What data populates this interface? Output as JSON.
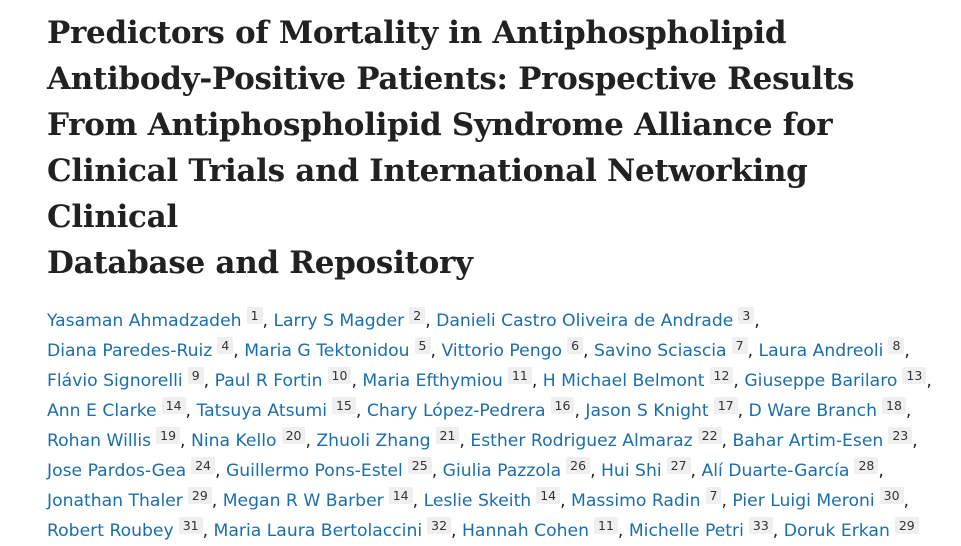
{
  "article": {
    "title": "Predictors of Mortality in Antiphospholipid Antibody-Positive Patients: Prospective Results From Antiphospholipid Syndrome Alliance for Clinical Trials and International Networking Clinical Database and Repository",
    "title_lines": [
      "Predictors of Mortality in Antiphospholipid",
      "Antibody‑Positive Patients: Prospective Results",
      "From Antiphospholipid Syndrome Alliance for",
      "Clinical Trials and International Networking Clinical",
      "Database and Repository"
    ],
    "colors": {
      "title": "#212121",
      "author_link": "#1a6eab",
      "affiliation_bg": "#efefef"
    },
    "authors": [
      {
        "name": "Yasaman Ahmadzadeh",
        "aff": "1"
      },
      {
        "name": "Larry S Magder",
        "aff": "2"
      },
      {
        "name": "Danieli Castro Oliveira de Andrade",
        "aff": "3"
      },
      {
        "name": "Diana Paredes-Ruiz",
        "aff": "4"
      },
      {
        "name": "Maria G Tektonidou",
        "aff": "5"
      },
      {
        "name": "Vittorio Pengo",
        "aff": "6"
      },
      {
        "name": "Savino Sciascia",
        "aff": "7"
      },
      {
        "name": "Laura Andreoli",
        "aff": "8"
      },
      {
        "name": "Flávio Signorelli",
        "aff": "9"
      },
      {
        "name": "Paul R Fortin",
        "aff": "10"
      },
      {
        "name": "Maria Efthymiou",
        "aff": "11"
      },
      {
        "name": "H Michael Belmont",
        "aff": "12"
      },
      {
        "name": "Giuseppe Barilaro",
        "aff": "13"
      },
      {
        "name": "Ann E Clarke",
        "aff": "14"
      },
      {
        "name": "Tatsuya Atsumi",
        "aff": "15"
      },
      {
        "name": "Chary López-Pedrera",
        "aff": "16"
      },
      {
        "name": "Jason S Knight",
        "aff": "17"
      },
      {
        "name": "D Ware Branch",
        "aff": "18"
      },
      {
        "name": "Rohan Willis",
        "aff": "19"
      },
      {
        "name": "Nina Kello",
        "aff": "20"
      },
      {
        "name": "Zhuoli Zhang",
        "aff": "21"
      },
      {
        "name": "Esther Rodriguez Almaraz",
        "aff": "22"
      },
      {
        "name": "Bahar Artim-Esen",
        "aff": "23"
      },
      {
        "name": "Jose Pardos-Gea",
        "aff": "24"
      },
      {
        "name": "Guillermo Pons-Estel",
        "aff": "25"
      },
      {
        "name": "Giulia Pazzola",
        "aff": "26"
      },
      {
        "name": "Hui Shi",
        "aff": "27"
      },
      {
        "name": "Alí Duarte-García",
        "aff": "28"
      },
      {
        "name": "Jonathan Thaler",
        "aff": "29"
      },
      {
        "name": "Megan R W Barber",
        "aff": "14"
      },
      {
        "name": "Leslie Skeith",
        "aff": "14"
      },
      {
        "name": "Massimo Radin",
        "aff": "7"
      },
      {
        "name": "Pier Luigi Meroni",
        "aff": "30"
      },
      {
        "name": "Robert Roubey",
        "aff": "31"
      },
      {
        "name": "Maria Laura Bertolaccini",
        "aff": "32"
      },
      {
        "name": "Hannah Cohen",
        "aff": "11"
      },
      {
        "name": "Michelle Petri",
        "aff": "33"
      },
      {
        "name": "Doruk Erkan",
        "aff": "29"
      }
    ],
    "separator": ", "
  }
}
